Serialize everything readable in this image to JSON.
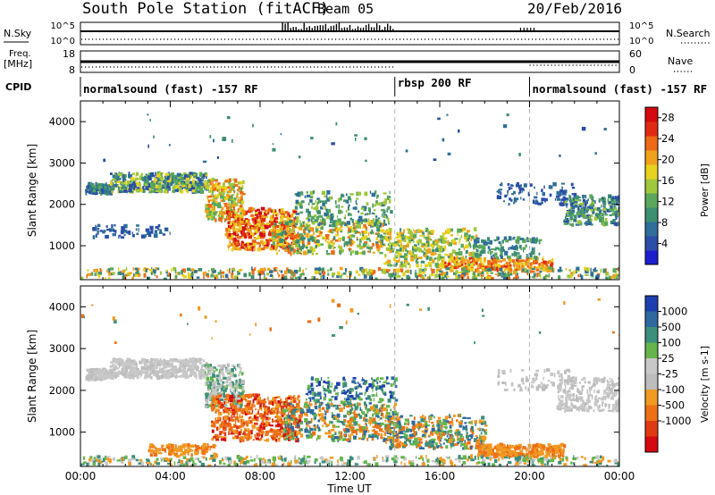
{
  "header": {
    "station": "South Pole Station (fitACF)",
    "beam": "Beam 05",
    "date": "20/Feb/2016"
  },
  "strip_panels": {
    "nsky_label": "N.Sky",
    "nsky_top_tick": "10^5",
    "nsky_bottom_tick": "10^0",
    "nsearch_label": "N.Search",
    "freq_label_line1": "Freq.",
    "freq_label_line2": "[MHz]",
    "freq_top_tick": "18",
    "freq_bottom_tick": "8",
    "nave_label": "Nave",
    "nave_top_tick": "60",
    "nave_bottom_tick": "0",
    "cpid_label": "CPID"
  },
  "cpid_segments": [
    {
      "label": "normalsound (fast) -157 RF",
      "start_hour": 0,
      "end_hour": 14
    },
    {
      "label": "rbsp 200 RF",
      "start_hour": 14,
      "end_hour": 20
    },
    {
      "label": "normalsound (fast) -157 RF",
      "start_hour": 20,
      "end_hour": 24
    }
  ],
  "x_axis": {
    "label": "Time UT",
    "ticks": [
      "00:00",
      "04:00",
      "08:00",
      "12:00",
      "16:00",
      "20:00",
      "00:00"
    ]
  },
  "colors": {
    "power_scale": [
      "#1d1dd0",
      "#2b4ea8",
      "#2f6f9a",
      "#3d8f72",
      "#5aa85a",
      "#9fc83d",
      "#e8d21e",
      "#f0a21c",
      "#ee6a16",
      "#e02a14",
      "#d40a10"
    ],
    "velocity_scale": [
      "#1d3fb0",
      "#2e6aa0",
      "#3c8f7a",
      "#63b54c",
      "#c8c8c8",
      "#bdbdbd",
      "#f09a22",
      "#ee7016",
      "#e03a12",
      "#d40a10"
    ]
  },
  "chart_data": [
    {
      "type": "heatmap",
      "title": "Power",
      "xlabel": "Time UT",
      "ylabel": "Slant Range [km]",
      "xlim": [
        0,
        24
      ],
      "ylim": [
        180,
        4500
      ],
      "y_ticks": [
        "1000",
        "2000",
        "3000",
        "4000"
      ],
      "colorbar_label": "Power [dB]",
      "colorbar_ticks": [
        "4",
        "8",
        "12",
        "16",
        "20",
        "24",
        "28"
      ],
      "colorbar_range": [
        0,
        30
      ],
      "grid": false
    },
    {
      "type": "heatmap",
      "title": "Velocity",
      "xlabel": "Time UT",
      "ylabel": "Slant Range [km]",
      "xlim": [
        0,
        24
      ],
      "ylim": [
        180,
        4500
      ],
      "y_ticks": [
        "1000",
        "2000",
        "3000",
        "4000"
      ],
      "colorbar_label": "Velocity [m s-1]",
      "colorbar_ticks": [
        "1000",
        "500",
        "100",
        "25",
        "-25",
        "-100",
        "-500",
        "-1000"
      ],
      "grid": false
    }
  ]
}
